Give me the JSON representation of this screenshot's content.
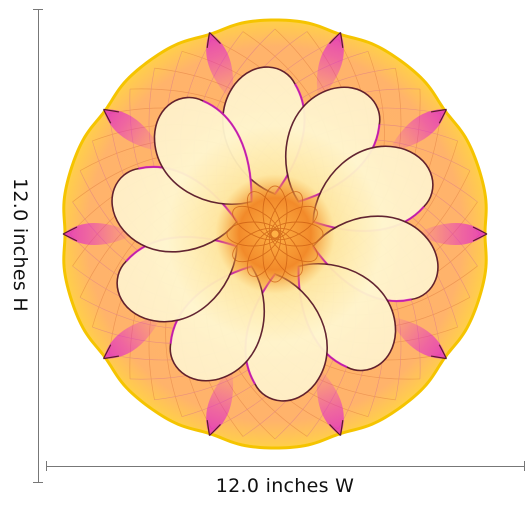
{
  "product": {
    "width_label": "12.0 inches W",
    "height_label": "12.0 inches H"
  },
  "artwork": {
    "petal_count_inner": 10,
    "petal_count_outer": 10,
    "colors": {
      "rim": "#f5c400",
      "body": "#ffb060",
      "petal_fill": "#fff3c0",
      "accent": "#e020d0",
      "center": "#f08a20",
      "outline": "#5a1a2a"
    }
  }
}
